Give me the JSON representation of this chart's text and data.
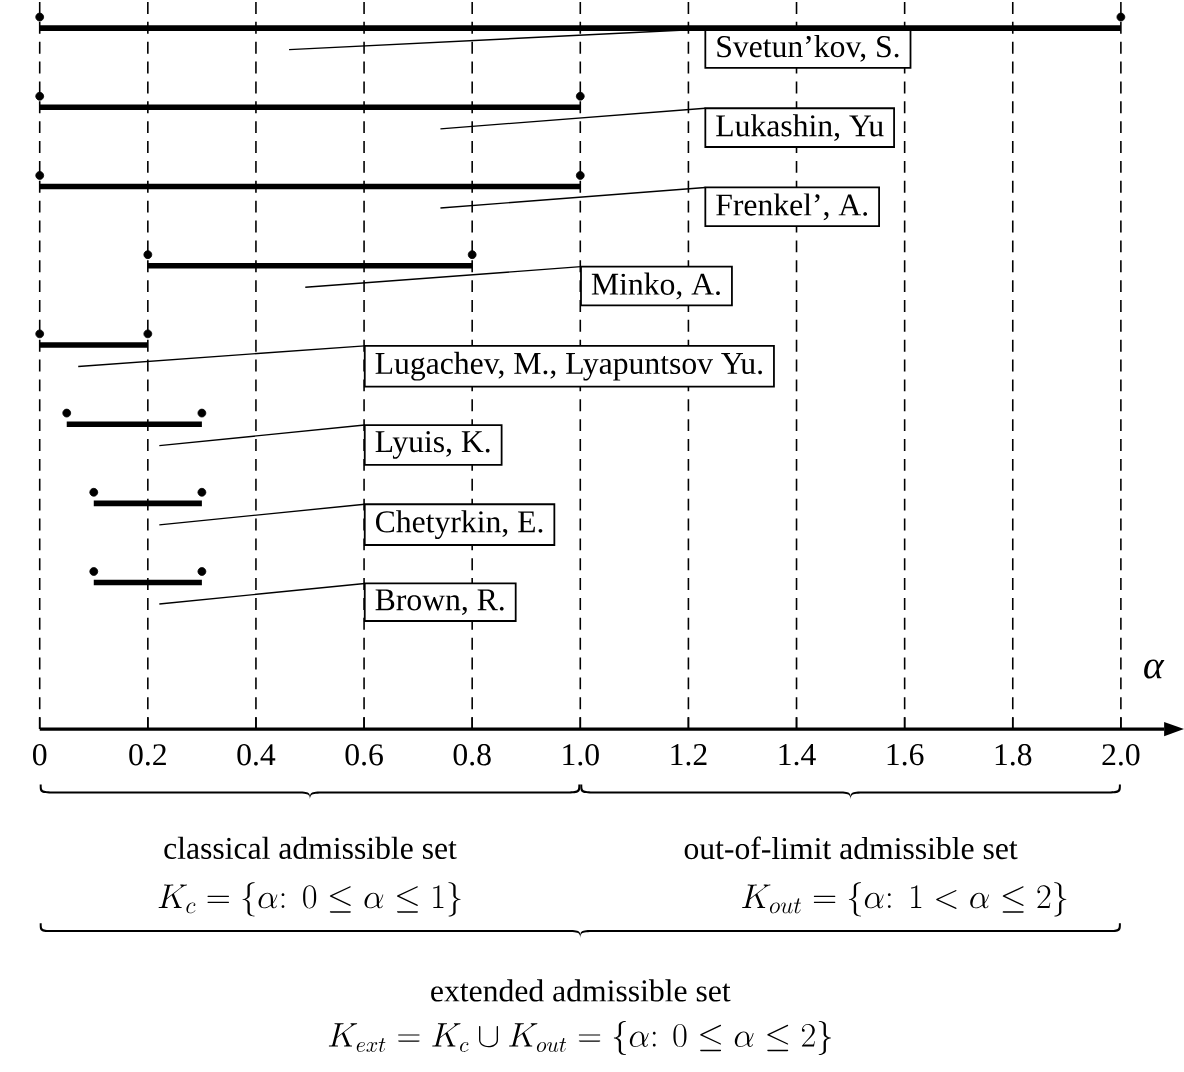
{
  "chart_data": {
    "type": "bar",
    "orientation": "horizontal",
    "color": "#000000",
    "marker": "circle",
    "grid": "x",
    "categories": [
      "Svetun’kov, S.",
      "Lukashin, Yu",
      "Frenkel’, A.",
      "Minko, A.",
      "Lugachev, M., Lyapuntsov Yu.",
      "Lyuis, K.",
      "Chetyrkin, E.",
      "Brown, R."
    ],
    "base": [
      0,
      0,
      0,
      0.2,
      0,
      0.05,
      0.1,
      0.1
    ],
    "values": [
      2.0,
      1.0,
      1.0,
      0.6,
      0.2,
      0.25,
      0.2,
      0.2
    ],
    "xlabel": "α",
    "xlim": [
      0,
      2.08
    ],
    "xticks": [
      0,
      0.2,
      0.4,
      0.6,
      0.8,
      {
        "value": 1,
        "label": "1.0"
      },
      1.2,
      1.4,
      1.6,
      1.8,
      {
        "value": 2,
        "label": "2.0"
      }
    ],
    "annotations": [
      "classical admissible set",
      "K_c=\\left\\{\\alpha\\colon\\ 0\\le\\alpha\\le 1\\right\\}",
      "out-of-limit admissible set",
      "K_{out}=\\left\\{\\alpha\\colon\\ 1<\\alpha\\le 2\\right\\}",
      "extended admissible set",
      "K_{ext}=K_c\\cup K_{out}=\\left\\{\\alpha\\colon\\ 0\\le\\alpha\\le 2\\right\\}"
    ]
  }
}
